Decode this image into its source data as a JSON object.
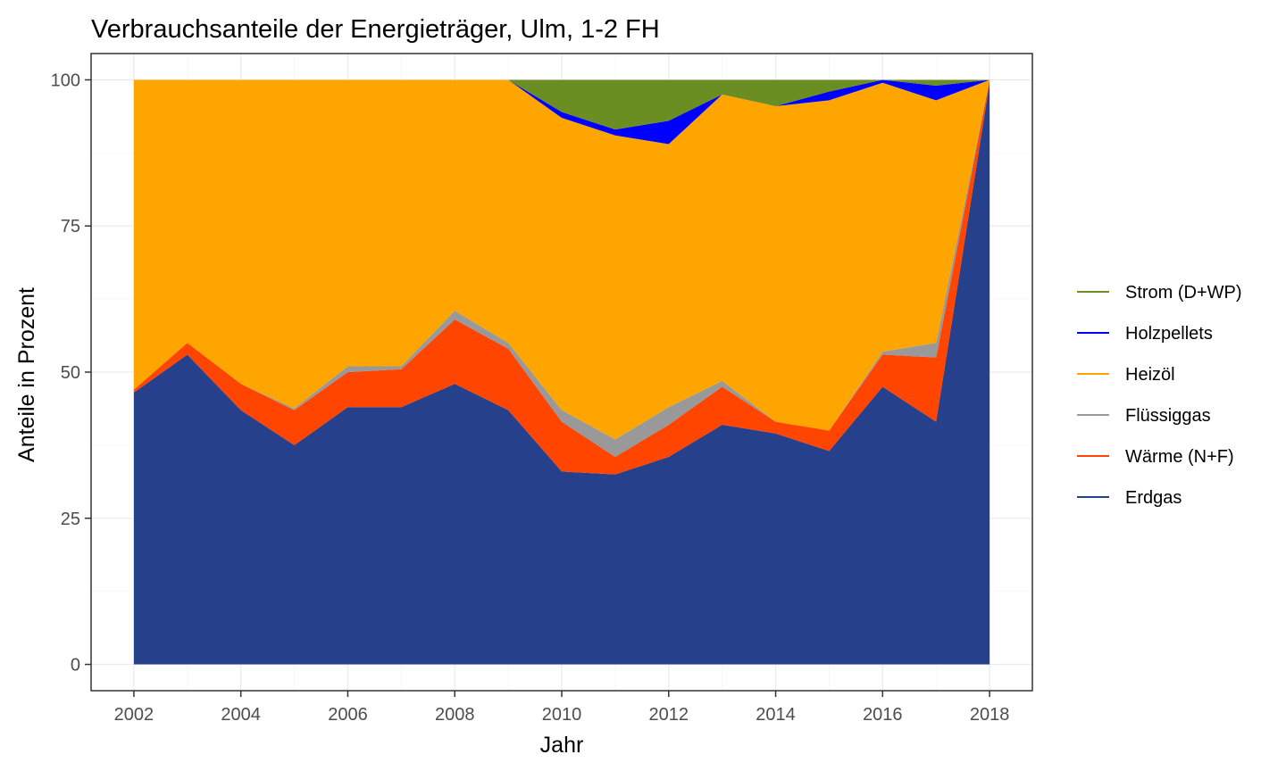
{
  "chart_data": {
    "type": "area",
    "stacked": true,
    "title": "Verbrauchsanteile der Energieträger, Ulm, 1-2 FH",
    "xlabel": "Jahr",
    "ylabel": "Anteile in Prozent",
    "xlim": [
      2001.2,
      2018.8
    ],
    "ylim": [
      -4.5,
      104.5
    ],
    "x_ticks": [
      2002,
      2004,
      2006,
      2008,
      2010,
      2012,
      2014,
      2016,
      2018
    ],
    "y_ticks": [
      0,
      25,
      50,
      75,
      100
    ],
    "grid": true,
    "legend_position": "right",
    "x": [
      2002,
      2003,
      2004,
      2005,
      2006,
      2007,
      2008,
      2009,
      2010,
      2011,
      2012,
      2013,
      2014,
      2015,
      2016,
      2017,
      2018
    ],
    "series": [
      {
        "name": "Erdgas",
        "color": "#26408b",
        "values": [
          46.5,
          53.0,
          43.5,
          37.5,
          44.0,
          44.0,
          48.0,
          43.5,
          33.0,
          32.5,
          35.5,
          41.0,
          39.5,
          36.5,
          47.5,
          41.5,
          99.5
        ]
      },
      {
        "name": "Wärme (N+F)",
        "color": "#ff4500",
        "values": [
          0.5,
          2.0,
          4.5,
          6.0,
          6.0,
          6.5,
          11.0,
          10.5,
          8.5,
          3.0,
          5.5,
          6.5,
          2.0,
          3.5,
          5.5,
          11.0,
          0.5
        ]
      },
      {
        "name": "Flüssiggas",
        "color": "#999999",
        "values": [
          0.0,
          0.0,
          0.0,
          0.3,
          1.0,
          0.5,
          1.5,
          1.0,
          2.0,
          3.0,
          3.0,
          1.0,
          0.0,
          0.0,
          0.5,
          2.5,
          0.0
        ]
      },
      {
        "name": "Heizöl",
        "color": "#ffa500",
        "values": [
          53.0,
          45.0,
          52.0,
          56.2,
          49.0,
          49.0,
          39.5,
          45.0,
          50.0,
          52.0,
          45.0,
          49.0,
          54.0,
          56.5,
          46.0,
          41.5,
          0.0
        ]
      },
      {
        "name": "Holzpellets",
        "color": "#0000ff",
        "values": [
          0.0,
          0.0,
          0.0,
          0.0,
          0.0,
          0.0,
          0.0,
          0.0,
          1.0,
          1.0,
          4.0,
          0.0,
          0.0,
          1.5,
          0.5,
          2.5,
          0.0
        ]
      },
      {
        "name": "Strom (D+WP)",
        "color": "#6b8e23",
        "values": [
          0.0,
          0.0,
          0.0,
          0.0,
          0.0,
          0.0,
          0.0,
          0.0,
          5.5,
          8.5,
          7.0,
          2.5,
          4.5,
          2.0,
          0.0,
          1.0,
          0.0
        ]
      }
    ],
    "legend_order": [
      "Strom (D+WP)",
      "Holzpellets",
      "Heizöl",
      "Flüssiggas",
      "Wärme (N+F)",
      "Erdgas"
    ]
  }
}
